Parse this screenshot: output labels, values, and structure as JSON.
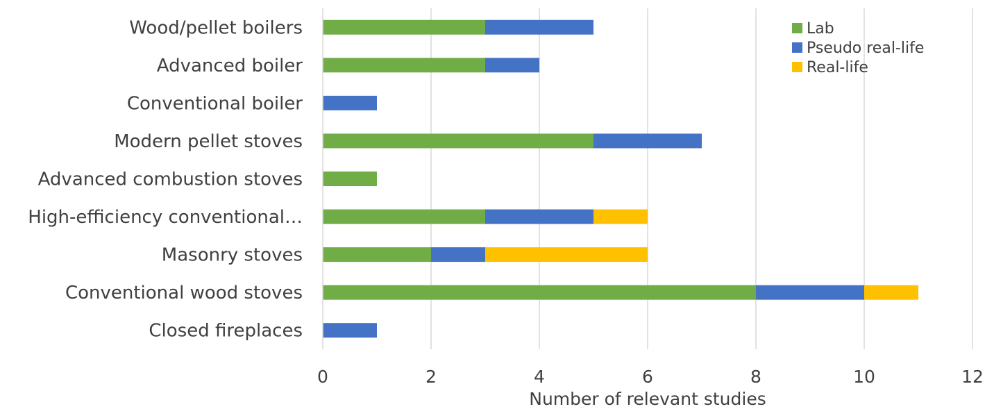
{
  "chart_data": {
    "type": "bar",
    "orientation": "horizontal",
    "stacked": true,
    "title": "",
    "xlabel": "Number of relevant studies",
    "ylabel": "",
    "xlim": [
      0,
      12
    ],
    "xticks": [
      0,
      2,
      4,
      6,
      8,
      10,
      12
    ],
    "grid": true,
    "legend_position": "top-right",
    "categories": [
      "Wood/pellet boilers",
      "Advanced boiler",
      "Conventional boiler",
      "Modern pellet stoves",
      "Advanced combustion stoves",
      "High-efficiency conventional…",
      "Masonry stoves",
      "Conventional wood stoves",
      "Closed fireplaces"
    ],
    "series": [
      {
        "name": "Lab",
        "color": "#70AD47",
        "values": [
          3,
          3,
          0,
          5,
          1,
          3,
          2,
          8,
          0
        ]
      },
      {
        "name": "Pseudo real-life",
        "color": "#4472C4",
        "values": [
          2,
          1,
          1,
          2,
          0,
          2,
          1,
          2,
          1
        ]
      },
      {
        "name": "Real-life",
        "color": "#FFC000",
        "values": [
          0,
          0,
          0,
          0,
          0,
          1,
          3,
          1,
          0
        ]
      }
    ]
  }
}
